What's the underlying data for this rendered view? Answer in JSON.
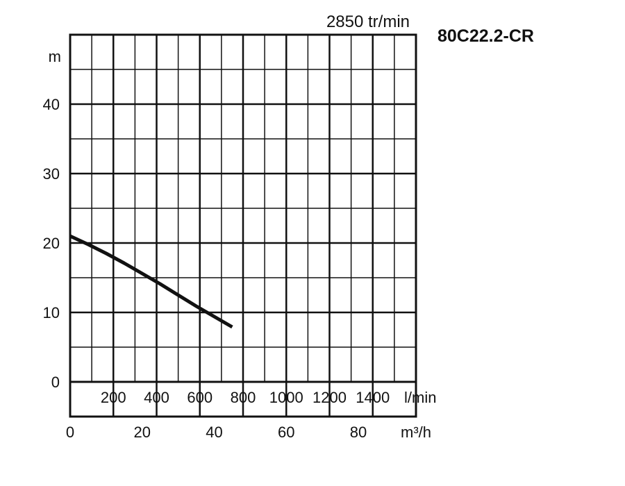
{
  "chart_data": {
    "type": "line",
    "title": "80C22.2-CR",
    "subtitle": "2850 tr/min",
    "ylabel": "m",
    "ylim": [
      0,
      50
    ],
    "y_ticks": [
      0,
      10,
      20,
      30,
      40
    ],
    "xlabel_flow_lmin": "l/min",
    "x_ticks_lmin": [
      "200",
      "400",
      "600",
      "800",
      "1000",
      "1200",
      "1400"
    ],
    "xlabel_flow_m3h": "m³/h",
    "x_ticks_m3h": [
      "0",
      "20",
      "40",
      "60",
      "80"
    ],
    "xlim_m3h": [
      0,
      96
    ],
    "grid": true,
    "series": [
      {
        "x": [
          0,
          5,
          10,
          15,
          20,
          25,
          30,
          35,
          40,
          45
        ],
        "y": [
          21.0,
          19.8,
          18.5,
          17.1,
          15.6,
          14.1,
          12.5,
          10.9,
          9.4,
          7.9
        ]
      }
    ]
  }
}
